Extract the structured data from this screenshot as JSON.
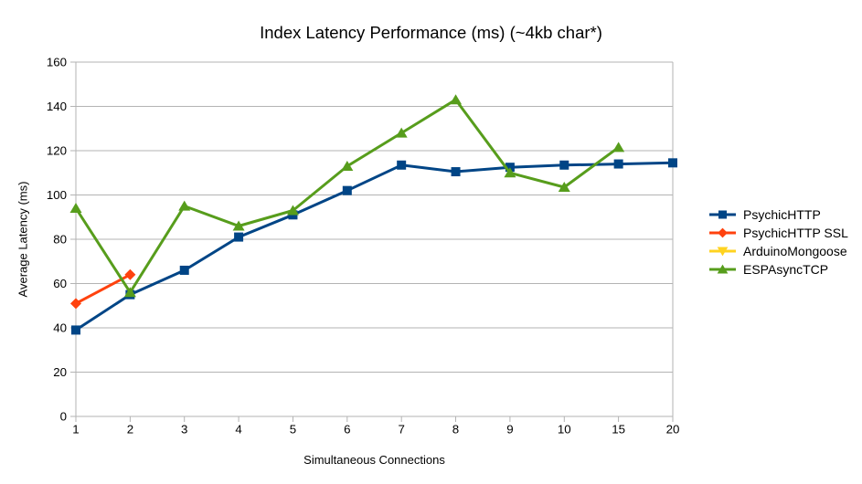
{
  "chart_data": {
    "type": "line",
    "title": "Index Latency Performance (ms) (~4kb char*)",
    "xlabel": "Simultaneous Connections",
    "ylabel": "Average Latency (ms)",
    "categories": [
      "1",
      "2",
      "3",
      "4",
      "5",
      "6",
      "7",
      "8",
      "9",
      "10",
      "15",
      "20"
    ],
    "y_ticks": [
      0,
      20,
      40,
      60,
      80,
      100,
      120,
      140,
      160
    ],
    "ylim": [
      0,
      160
    ],
    "grid": "horizontal-only",
    "legend_position": "right",
    "gridline_color": "#b3b3b3",
    "text_color": "#000000",
    "background_color": "#ffffff",
    "series": [
      {
        "name": "PsychicHTTP",
        "color": "#004586",
        "marker": "square",
        "values": [
          39,
          55,
          66,
          81,
          91,
          102,
          113.5,
          110.5,
          112.5,
          113.5,
          114,
          114.5
        ]
      },
      {
        "name": "PsychicHTTP SSL",
        "color": "#ff420e",
        "marker": "diamond",
        "values": [
          51,
          64,
          null,
          null,
          null,
          null,
          null,
          null,
          null,
          null,
          null,
          null
        ]
      },
      {
        "name": "ArduinoMongoose",
        "color": "#ffd320",
        "marker": "triangle-down",
        "values": [
          null,
          null,
          null,
          null,
          null,
          null,
          null,
          null,
          null,
          null,
          null,
          null
        ]
      },
      {
        "name": "ESPAsyncTCP",
        "color": "#579d1c",
        "marker": "triangle-up",
        "values": [
          94,
          56,
          95,
          86,
          93,
          113,
          128,
          143,
          110,
          103.5,
          121.5,
          null
        ]
      }
    ]
  }
}
